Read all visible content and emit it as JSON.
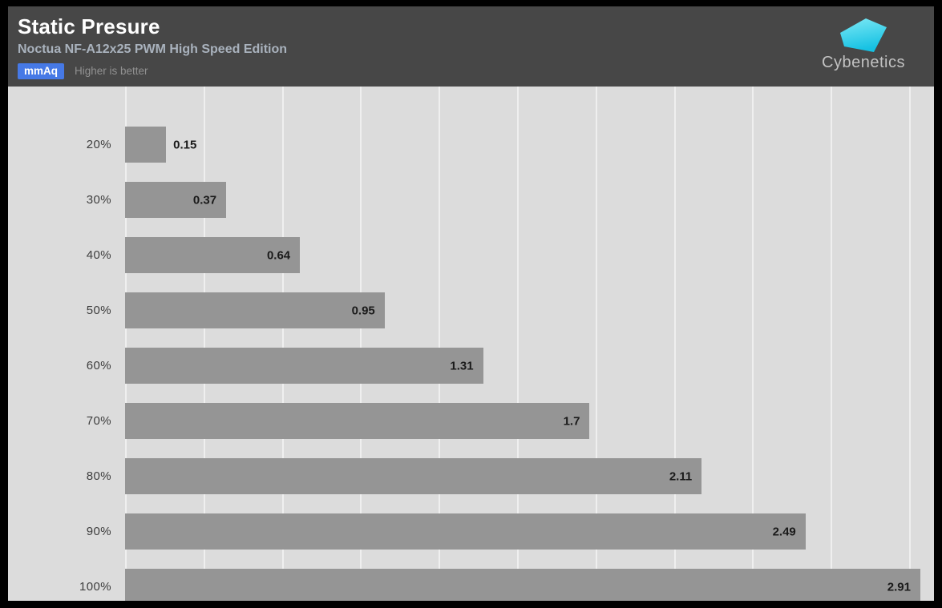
{
  "header": {
    "title": "Static Presure",
    "subtitle": "Noctua NF-A12x25 PWM High Speed Edition",
    "unit_badge": "mmAq",
    "note": "Higher is better",
    "logo_text": "Cybenetics"
  },
  "colors": {
    "header_bg": "#474747",
    "plot_bg": "#dcdcdc",
    "bar": "#959595",
    "badge_blue": "#4679e6",
    "value_text": "#1a1a1a",
    "logo_cyan_top": "#7de9f5",
    "logo_cyan_bottom": "#15c1e3"
  },
  "chart_data": {
    "type": "bar",
    "orientation": "horizontal",
    "title": "Static Presure",
    "subtitle": "Noctua NF-A12x25 PWM High Speed Edition",
    "unit": "mmAq",
    "higher_is_better": true,
    "categories": [
      "20%",
      "30%",
      "40%",
      "50%",
      "60%",
      "70%",
      "80%",
      "90%",
      "100%"
    ],
    "values": [
      0.15,
      0.37,
      0.64,
      0.95,
      1.31,
      1.7,
      2.11,
      2.49,
      2.91
    ],
    "value_labels": [
      "0.15",
      "0.37",
      "0.64",
      "0.95",
      "1.31",
      "1.7",
      "2.11",
      "2.49",
      "2.91"
    ],
    "xlabel": "",
    "ylabel": "",
    "xlim": [
      0,
      2.96
    ],
    "grid": true,
    "gridline_count": 11,
    "legend": "none"
  }
}
